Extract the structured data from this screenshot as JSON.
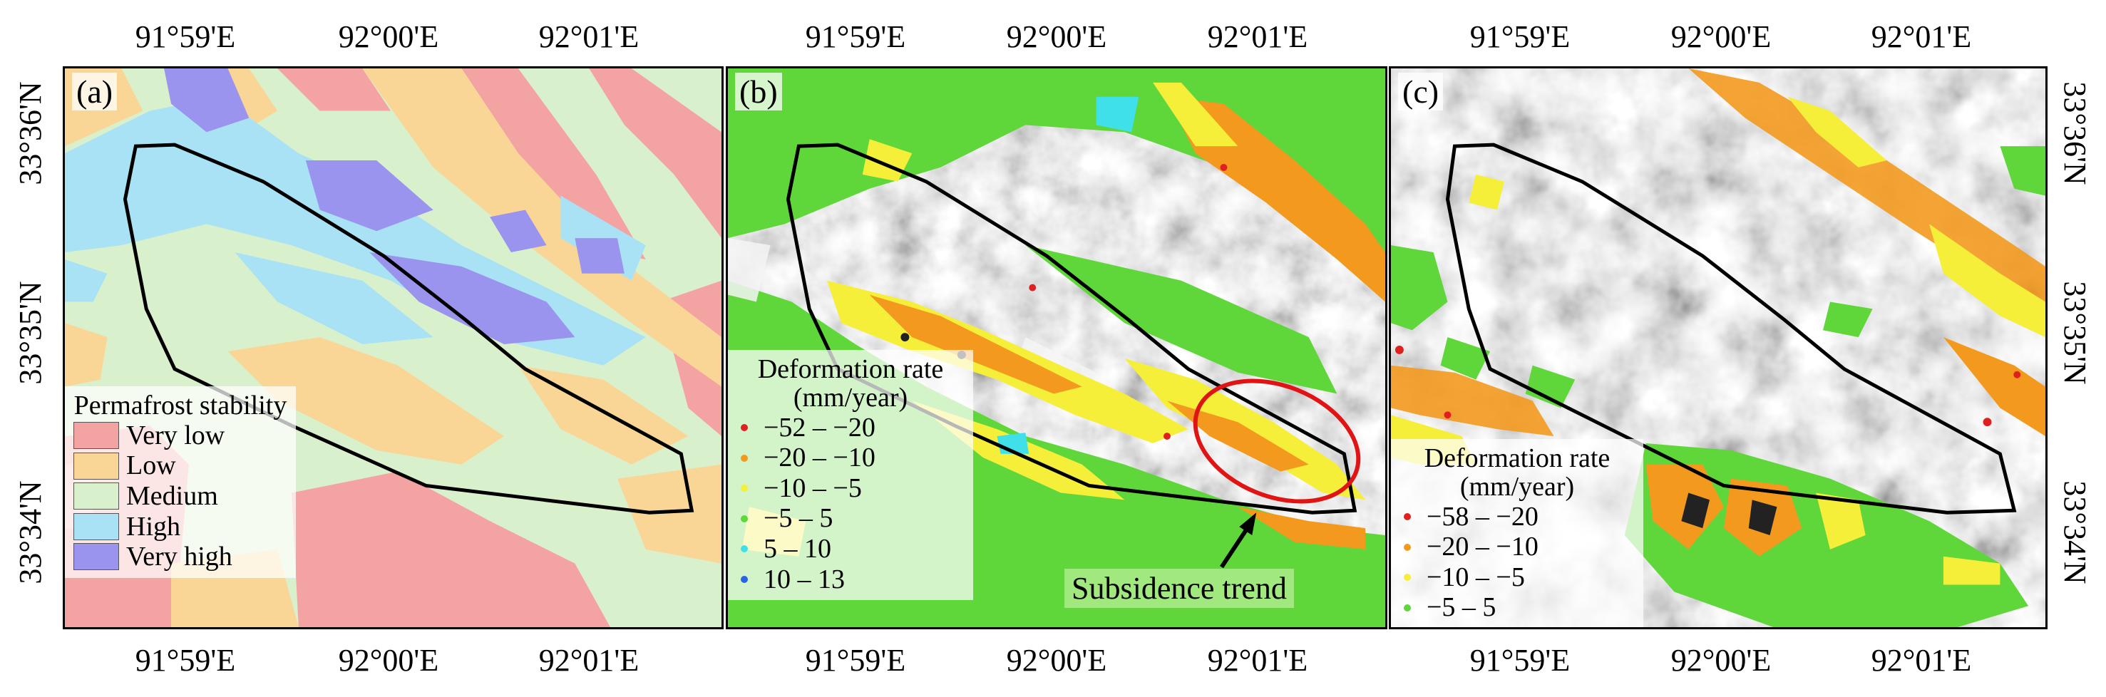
{
  "longitude_ticks": [
    "91°59'E",
    "92°00'E",
    "92°01'E"
  ],
  "latitude_ticks": [
    "33°36'N",
    "33°35'N",
    "33°34'N"
  ],
  "panels": [
    {
      "label": "(a)",
      "legend": {
        "title": "Permafrost stability",
        "items": [
          {
            "label": "Very low",
            "color": "#f4a3a3"
          },
          {
            "label": "Low",
            "color": "#fad696"
          },
          {
            "label": "Medium",
            "color": "#d9f0cc"
          },
          {
            "label": "High",
            "color": "#a9e2f5"
          },
          {
            "label": "Very high",
            "color": "#9b94ee"
          }
        ]
      }
    },
    {
      "label": "(b)",
      "legend": {
        "title": "Deformation rate (mm/year)",
        "items": [
          {
            "label": "−52 – −20",
            "color": "#e02020"
          },
          {
            "label": "−20 – −10",
            "color": "#f39a1e"
          },
          {
            "label": "−10 – −5",
            "color": "#f5ef3a"
          },
          {
            "label": "−5 – 5",
            "color": "#5fd63a"
          },
          {
            "label": "5 – 10",
            "color": "#3fe0ea"
          },
          {
            "label": "10 – 13",
            "color": "#2a64e6"
          }
        ]
      },
      "annotation": "Subsidence trend"
    },
    {
      "label": "(c)",
      "legend": {
        "title": "Deformation rate (mm/year)",
        "items": [
          {
            "label": "−58 – −20",
            "color": "#e02020"
          },
          {
            "label": "−20 – −10",
            "color": "#f39a1e"
          },
          {
            "label": "−10 – −5",
            "color": "#f5ef3a"
          },
          {
            "label": "−5 – 5",
            "color": "#5fd63a"
          }
        ]
      }
    }
  ]
}
